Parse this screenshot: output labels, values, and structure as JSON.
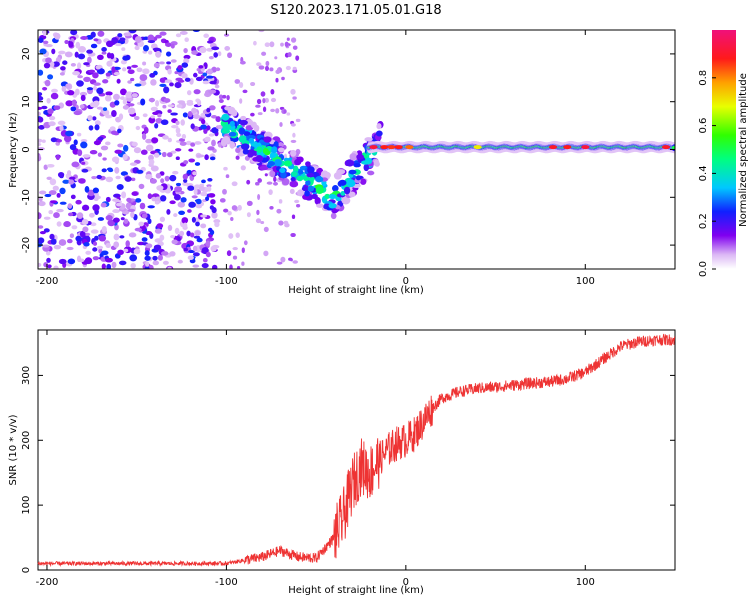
{
  "title": "S120.2023.171.05.01.G18",
  "colors": {
    "snr_line": "#ee3333",
    "spec_low": "#8800ee",
    "axis": "#000000"
  },
  "chart_data": [
    {
      "type": "heatmap",
      "name": "spectrogram",
      "xlabel": "Height of straight line (km)",
      "ylabel": "Frequency (Hz)",
      "xlim": [
        -205,
        150
      ],
      "ylim": [
        -25,
        25
      ],
      "xticks": [
        -200,
        -100,
        0,
        100
      ],
      "yticks": [
        -20,
        -10,
        0,
        10,
        20
      ],
      "colorbar": {
        "label": "Normalized spectral amplitude",
        "range": [
          0,
          1
        ],
        "ticks": [
          0.0,
          0.2,
          0.4,
          0.6,
          0.8
        ],
        "colormap": "rainbow (white-violet-blue-cyan-green-yellow-red-pink)"
      },
      "regions": [
        {
          "x": [
            -205,
            -105
          ],
          "description": "scattered low-amplitude noise",
          "amplitude": [
            0.05,
            0.25
          ]
        },
        {
          "x": [
            -100,
            -40
          ],
          "description": "descending blob trail",
          "freq": [
            5,
            -10
          ],
          "amplitude": [
            0.2,
            0.6
          ]
        },
        {
          "x": [
            -40,
            -15
          ],
          "description": "rising from minimum",
          "freq": [
            -10,
            1
          ],
          "amplitude": [
            0.3,
            0.6
          ]
        },
        {
          "x": [
            -15,
            150
          ],
          "description": "steady narrowband signal",
          "freq": [
            0,
            1
          ],
          "amplitude": [
            0.5,
            0.95
          ]
        }
      ]
    },
    {
      "type": "line",
      "name": "snr",
      "xlabel": "Height of straight line (km)",
      "ylabel": "SNR (10 * v/v)",
      "xlim": [
        -205,
        150
      ],
      "ylim": [
        0,
        370
      ],
      "xticks": [
        -200,
        -100,
        0,
        100
      ],
      "yticks": [
        0,
        100,
        200,
        300
      ],
      "series": [
        {
          "points": [
            [
              -205,
              10
            ],
            [
              -150,
              10
            ],
            [
              -100,
              10
            ],
            [
              -80,
              20
            ],
            [
              -70,
              30
            ],
            [
              -60,
              20
            ],
            [
              -50,
              18
            ],
            [
              -40,
              50
            ],
            [
              -35,
              80
            ],
            [
              -30,
              130
            ],
            [
              -25,
              160
            ],
            [
              -20,
              150
            ],
            [
              -15,
              170
            ],
            [
              -10,
              185
            ],
            [
              -5,
              195
            ],
            [
              0,
              200
            ],
            [
              5,
              210
            ],
            [
              10,
              230
            ],
            [
              15,
              250
            ],
            [
              20,
              265
            ],
            [
              30,
              275
            ],
            [
              40,
              280
            ],
            [
              50,
              282
            ],
            [
              60,
              285
            ],
            [
              70,
              288
            ],
            [
              80,
              290
            ],
            [
              90,
              295
            ],
            [
              100,
              305
            ],
            [
              110,
              325
            ],
            [
              120,
              345
            ],
            [
              130,
              352
            ],
            [
              140,
              355
            ],
            [
              150,
              355
            ]
          ]
        }
      ]
    }
  ]
}
